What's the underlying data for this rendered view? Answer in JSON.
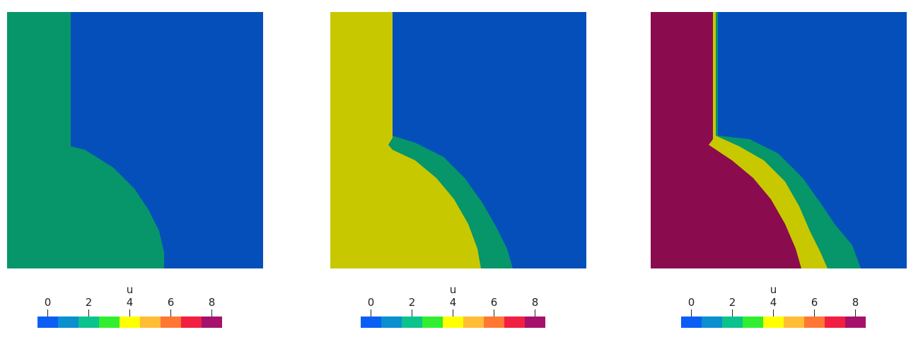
{
  "colormap": {
    "title": "u",
    "tick_labels": [
      "0",
      "2",
      "4",
      "6",
      "8"
    ],
    "bins": [
      "#0b5ef5",
      "#0a8fcf",
      "#0bc38c",
      "#31ee30",
      "#ffff00",
      "#ffbd36",
      "#ff7733",
      "#f21f42",
      "#a6116b"
    ]
  },
  "field_colors": {
    "blue": "#054fbb",
    "green": "#06966a",
    "yellow": "#c8c800",
    "crimson": "#8a0c4e"
  },
  "panels": [
    {
      "regions": [
        "green"
      ]
    },
    {
      "regions": [
        "yellow",
        "green"
      ]
    },
    {
      "regions": [
        "crimson",
        "yellow",
        "green"
      ]
    }
  ]
}
